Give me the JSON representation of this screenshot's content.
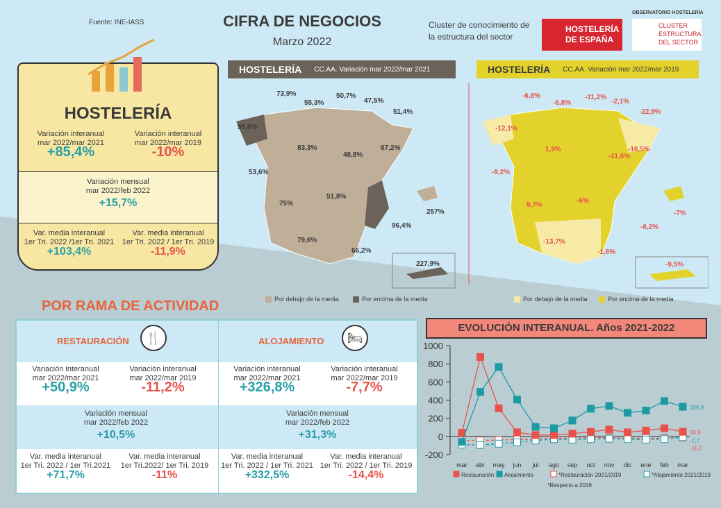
{
  "header": {
    "source": "Fuente: INE-IASS",
    "title": "CIFRA DE NEGOCIOS",
    "subtitle": "Marzo 2022",
    "cluster_text": "Cluster de conocimiento de la estructura del sector",
    "logo_he": "HOSTELERÍA DE ESPAÑA",
    "logo_obs_top": "OBSERVATORIO HOSTELERÍA",
    "logo_obs": "CLUSTER ESTRUCTURA DEL SECTOR"
  },
  "summary": {
    "title": "HOSTELERÍA",
    "yoy21_label1": "Variación interanual",
    "yoy21_label2": "mar 2022/mar 2021",
    "yoy21_value": "+85,4%",
    "yoy19_label1": "Variación interanual",
    "yoy19_label2": "mar 2022/mar 2019",
    "yoy19_value": "-10%",
    "mom_label1": "Variación mensual",
    "mom_label2": "mar 2022/feb 2022",
    "mom_value": "+15,7%",
    "q21_label1": "Var. media interanual",
    "q21_label2": "1er Tri. 2022 /1er Tri. 2021",
    "q21_value": "+103,4%",
    "q19_label1": "Var. media interanual",
    "q19_label2": "1er Tri. 2022 / 1er Tri. 2019",
    "q19_value": "-11,9%"
  },
  "map21": {
    "banner_title": "HOSTELERÍA",
    "banner_sub": "CC.AA. Variación mar 2022/mar 2021",
    "legend_below": "Por debajo de la media",
    "legend_above": "Por encima de la media",
    "colors": {
      "below": "#bfae98",
      "above": "#6b6259"
    },
    "labels": [
      "73,9%",
      "55,3%",
      "50,7%",
      "47,5%",
      "51,4%",
      "95,6%",
      "83,3%",
      "48,8%",
      "67,2%",
      "53,6%",
      "75%",
      "51,8%",
      "257%",
      "96,4%",
      "79,6%",
      "66,2%",
      "227,9%"
    ]
  },
  "map19": {
    "banner_title": "HOSTELERÍA",
    "banner_sub": "CC.AA. Variación mar 2022/mar 2019",
    "legend_below": "Por debajo de la media",
    "legend_above": "Por encima de la media",
    "colors": {
      "below": "#f7eaa6",
      "above": "#e3d22c"
    },
    "labels": [
      "-6,8%",
      "-6,8%",
      "-11,2%",
      "-2,1%",
      "-22,9%",
      "-12,1%",
      "1,9%",
      "-11,6%",
      "-16,5%",
      "-9,2%",
      "9,7%",
      "-6%",
      "-7%",
      "-6,2%",
      "-13,7%",
      "-1,6%",
      "-9,5%"
    ]
  },
  "branches": {
    "title": "POR RAMA DE ACTIVIDAD",
    "restauracion": {
      "name": "RESTAURACIÓN",
      "yoy21_label1": "Variación interanual",
      "yoy21_label2": "mar 2022/mar 2021",
      "yoy21_value": "+50,9%",
      "yoy19_label1": "Variación interanual",
      "yoy19_label2": "mar 2022/mar 2019",
      "yoy19_value": "-11,2%",
      "mom_label1": "Variación mensual",
      "mom_label2": "mar 2022/feb 2022",
      "mom_value": "+10,5%",
      "q21_label1": "Var. media interanual",
      "q21_label2": "1er Tri. 2022 / 1er Tri.2021",
      "q21_value": "+71,7%",
      "q19_label1": "Var. media interanual",
      "q19_label2": "1er Tri.2022/ 1er Tri. 2019",
      "q19_value": "-11%"
    },
    "alojamiento": {
      "name": "ALOJAMIENTO",
      "yoy21_label1": "Variación interanual",
      "yoy21_label2": "mar 2022/mar 2021",
      "yoy21_value": "+326,8%",
      "yoy19_label1": "Variación interanual",
      "yoy19_label2": "mar 2022/mar 2019",
      "yoy19_value": "-7,7%",
      "mom_label1": "Variación mensual",
      "mom_label2": "mar 2022/feb 2022",
      "mom_value": "+31,3%",
      "q21_label1": "Var. media interanual",
      "q21_label2": "1er Tri. 2022 / 1er Tri. 2021",
      "q21_value": "+332,5%",
      "q19_label1": "Var. media interanual",
      "q19_label2": "1er Tri. 2022 / 1er Tri. 2019",
      "q19_value": "-14,4%"
    }
  },
  "chart_data": {
    "type": "line",
    "title": "EVOLUCIÓN INTERANUAL. Años 2021-2022",
    "categories": [
      "mar",
      "abr",
      "may",
      "jun",
      "jul",
      "ago",
      "sep",
      "oct",
      "nov",
      "dic",
      "ene",
      "feb",
      "mar"
    ],
    "ylim": [
      -200,
      1000
    ],
    "yticks": [
      "1000",
      "800",
      "600",
      "400",
      "200",
      "0",
      "-200"
    ],
    "legend": "bottom",
    "footnote": "*Respecto a 2019",
    "series": [
      {
        "name": "Restauración",
        "color": "#e8524a",
        "style": "solid",
        "values": [
          40,
          875,
          310,
          45,
          15,
          15,
          30,
          50,
          75,
          45,
          65,
          90,
          50.9
        ],
        "end_label": "50,9"
      },
      {
        "name": "Alojamiento",
        "color": "#1f9aa5",
        "style": "solid",
        "values": [
          -60,
          490,
          765,
          405,
          105,
          90,
          175,
          305,
          335,
          260,
          285,
          390,
          326.8
        ],
        "end_label": "326,8"
      },
      {
        "name": "*Restauración 2021/2019",
        "color": "#e8524a",
        "style": "dashed",
        "values": [
          -45,
          -45,
          -40,
          -35,
          -30,
          -20,
          -20,
          -10,
          -15,
          -20,
          -20,
          -20,
          -11.2
        ],
        "end_label": "-11,2"
      },
      {
        "name": "*Alojamiento 2021/2019",
        "color": "#1f9aa5",
        "style": "dashed",
        "values": [
          -90,
          -95,
          -80,
          -65,
          -45,
          -30,
          -35,
          -30,
          -25,
          -30,
          -35,
          -30,
          -7.7
        ],
        "end_label": "-7,7"
      }
    ]
  }
}
